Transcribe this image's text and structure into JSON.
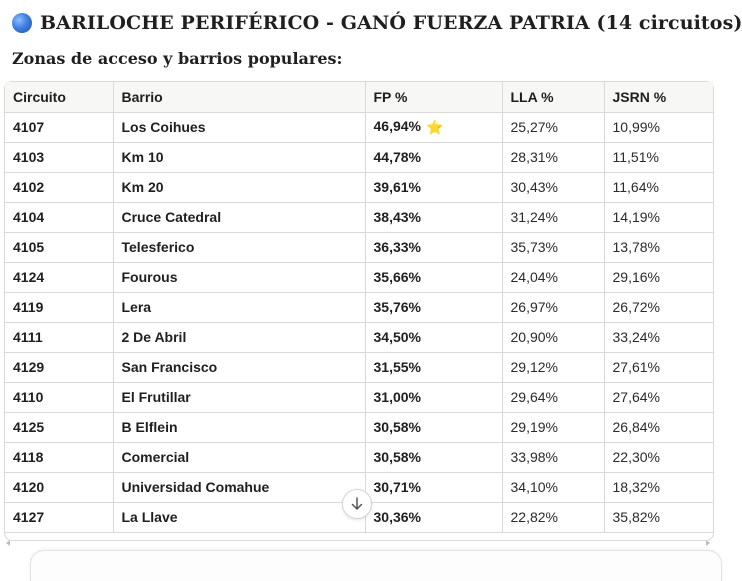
{
  "heading": {
    "title": "BARILOCHE PERIFÉRICO - GANÓ FUERZA PATRIA (14 circuitos)",
    "icon": "blue-circle-icon",
    "icon_color": "#3f7fe0"
  },
  "subheading": "Zonas de acceso y barrios populares:",
  "table": {
    "columns": [
      "Circuito",
      "Barrio",
      "FP %",
      "LLA %",
      "JSRN %"
    ],
    "rows": [
      {
        "circuito": "4107",
        "barrio": "Los Coihues",
        "fp": "46,94%",
        "lla": "25,27%",
        "jsrn": "10,99%",
        "star": "⭐"
      },
      {
        "circuito": "4103",
        "barrio": "Km 10",
        "fp": "44,78%",
        "lla": "28,31%",
        "jsrn": "11,51%"
      },
      {
        "circuito": "4102",
        "barrio": "Km 20",
        "fp": "39,61%",
        "lla": "30,43%",
        "jsrn": "11,64%"
      },
      {
        "circuito": "4104",
        "barrio": "Cruce Catedral",
        "fp": "38,43%",
        "lla": "31,24%",
        "jsrn": "14,19%"
      },
      {
        "circuito": "4105",
        "barrio": "Telesferico",
        "fp": "36,33%",
        "lla": "35,73%",
        "jsrn": "13,78%"
      },
      {
        "circuito": "4124",
        "barrio": "Fourous",
        "fp": "35,66%",
        "lla": "24,04%",
        "jsrn": "29,16%"
      },
      {
        "circuito": "4119",
        "barrio": "Lera",
        "fp": "35,76%",
        "lla": "26,97%",
        "jsrn": "26,72%"
      },
      {
        "circuito": "4111",
        "barrio": "2 De Abril",
        "fp": "34,50%",
        "lla": "20,90%",
        "jsrn": "33,24%"
      },
      {
        "circuito": "4129",
        "barrio": "San Francisco",
        "fp": "31,55%",
        "lla": "29,12%",
        "jsrn": "27,61%"
      },
      {
        "circuito": "4110",
        "barrio": "El Frutillar",
        "fp": "31,00%",
        "lla": "29,64%",
        "jsrn": "27,64%"
      },
      {
        "circuito": "4125",
        "barrio": "B Elflein",
        "fp": "30,58%",
        "lla": "29,19%",
        "jsrn": "26,84%"
      },
      {
        "circuito": "4118",
        "barrio": "Comercial",
        "fp": "30,58%",
        "lla": "33,98%",
        "jsrn": "22,30%"
      },
      {
        "circuito": "4120",
        "barrio": "Universidad Comahue",
        "fp": "30,71%",
        "lla": "34,10%",
        "jsrn": "18,32%"
      },
      {
        "circuito": "4127",
        "barrio": "La Llave",
        "fp": "30,36%",
        "lla": "22,82%",
        "jsrn": "35,82%"
      }
    ]
  },
  "scroll_down_button": {
    "icon": "arrow-down-icon"
  },
  "colors": {
    "header_bg": "#f7f7f5",
    "border": "#d9d9d9",
    "star": "#f2b52e"
  }
}
